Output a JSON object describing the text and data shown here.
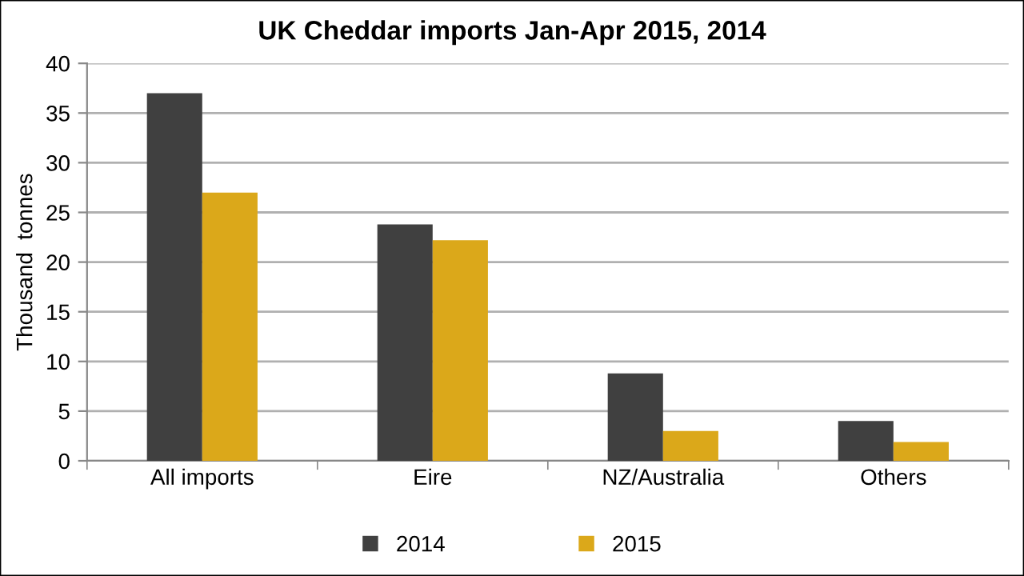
{
  "chart_data": {
    "type": "bar",
    "title": "UK Cheddar imports Jan-Apr 2015, 2014",
    "ylabel": "Thousand  tonnes",
    "categories": [
      "All imports",
      "Eire",
      "NZ/Australia",
      "Others"
    ],
    "series": [
      {
        "name": "2014",
        "color": "#404040",
        "values": [
          37,
          23.8,
          8.8,
          4
        ]
      },
      {
        "name": "2015",
        "color": "#dba81a",
        "values": [
          27,
          22.2,
          3,
          1.9
        ]
      }
    ],
    "ylim": [
      0,
      40
    ],
    "yticks": [
      0,
      5,
      10,
      15,
      20,
      25,
      30,
      35,
      40
    ],
    "grid": "y",
    "legend": "bottom"
  }
}
